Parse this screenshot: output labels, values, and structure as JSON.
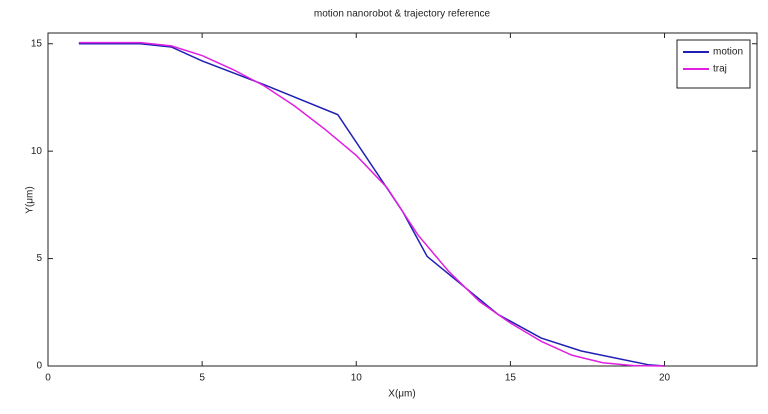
{
  "chart_data": {
    "type": "line",
    "title": "motion nanorobot & trajectory reference",
    "xlabel": "X(μm)",
    "ylabel": "Y(μm)",
    "xlim": [
      0,
      23
    ],
    "ylim": [
      0,
      15.5
    ],
    "xticks": [
      0,
      5,
      10,
      15,
      20
    ],
    "yticks": [
      0,
      5,
      10,
      15
    ],
    "legend": "upper right",
    "series": [
      {
        "name": "motion",
        "color": "#1f1fb4",
        "x": [
          1,
          2,
          3,
          4,
          5,
          7,
          9.4,
          11.5,
          12.3,
          14.6,
          16,
          17.3,
          19.5,
          20
        ],
        "values": [
          15,
          15,
          15,
          14.85,
          14.2,
          13.1,
          11.7,
          7.2,
          5.1,
          2.4,
          1.3,
          0.7,
          0.05,
          0
        ]
      },
      {
        "name": "traj",
        "color": "#e020e0",
        "x": [
          1,
          2,
          3,
          4,
          5,
          6,
          7,
          8,
          9,
          10,
          11,
          12,
          13,
          14,
          15,
          16,
          17,
          18,
          19,
          20
        ],
        "values": [
          15.05,
          15.05,
          15.05,
          14.9,
          14.45,
          13.8,
          13.05,
          12.1,
          11,
          9.8,
          8.3,
          6.1,
          4.4,
          3,
          2,
          1.15,
          0.5,
          0.15,
          0.02,
          0
        ]
      }
    ]
  }
}
